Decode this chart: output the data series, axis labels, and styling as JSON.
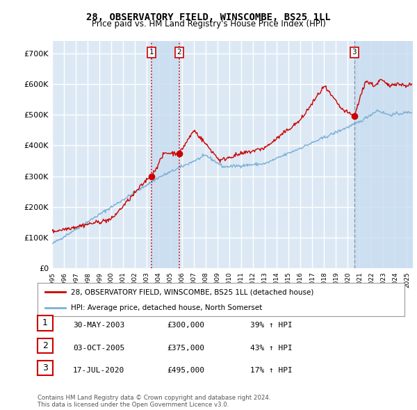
{
  "title": "28, OBSERVATORY FIELD, WINSCOMBE, BS25 1LL",
  "subtitle": "Price paid vs. HM Land Registry's House Price Index (HPI)",
  "ylabel_ticks": [
    "£0",
    "£100K",
    "£200K",
    "£300K",
    "£400K",
    "£500K",
    "£600K",
    "£700K"
  ],
  "ytick_vals": [
    0,
    100000,
    200000,
    300000,
    400000,
    500000,
    600000,
    700000
  ],
  "ylim": [
    0,
    740000
  ],
  "xlim_start": 1995.0,
  "xlim_end": 2025.5,
  "sale_dates": [
    2003.41,
    2005.75,
    2020.54
  ],
  "sale_prices": [
    300000,
    375000,
    495000
  ],
  "sale_labels": [
    "1",
    "2",
    "3"
  ],
  "vline_color_red": "#cc0000",
  "vline_color_grey": "#8899aa",
  "vline_style_dotted": ":",
  "vline_style_dashed": "--",
  "sale_dot_color": "#cc0000",
  "legend_label_red": "28, OBSERVATORY FIELD, WINSCOMBE, BS25 1LL (detached house)",
  "legend_label_blue": "HPI: Average price, detached house, North Somerset",
  "table_entries": [
    {
      "num": "1",
      "date": "30-MAY-2003",
      "price": "£300,000",
      "pct": "39% ↑ HPI"
    },
    {
      "num": "2",
      "date": "03-OCT-2005",
      "price": "£375,000",
      "pct": "43% ↑ HPI"
    },
    {
      "num": "3",
      "date": "17-JUL-2020",
      "price": "£495,000",
      "pct": "17% ↑ HPI"
    }
  ],
  "footnote": "Contains HM Land Registry data © Crown copyright and database right 2024.\nThis data is licensed under the Open Government Licence v3.0.",
  "bg_color": "#ffffff",
  "plot_bg_color": "#dce9f5",
  "highlight_color": "#c8ddf0",
  "grid_color": "#ffffff",
  "red_line_color": "#cc0000",
  "blue_line_color": "#7bafd4"
}
